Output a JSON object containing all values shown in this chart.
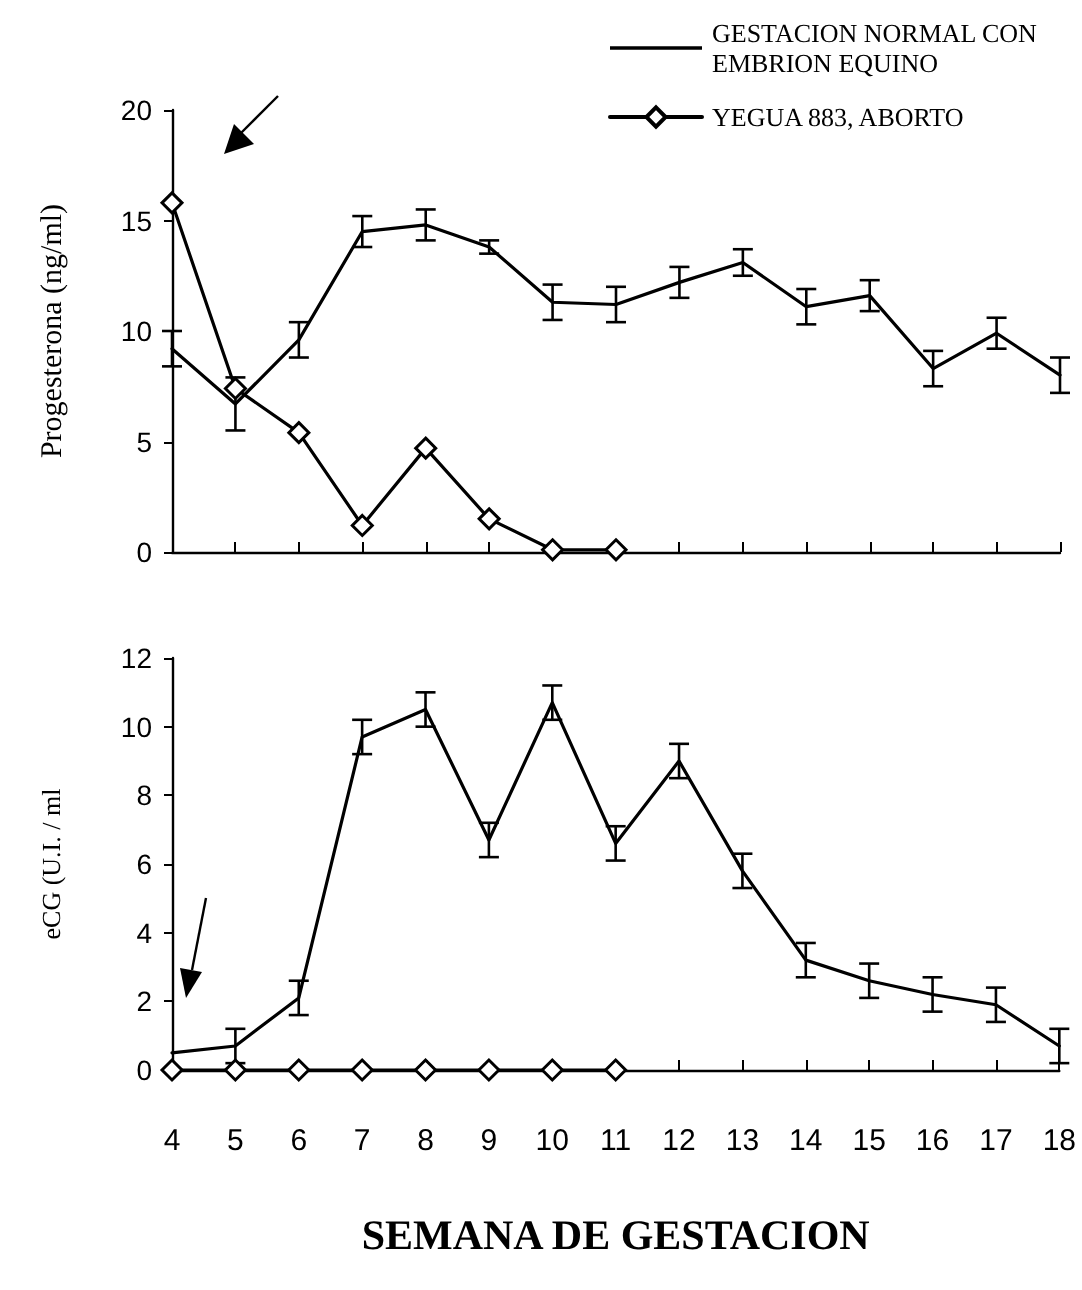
{
  "chart_data": [
    {
      "type": "line",
      "ylabel": "Progesterona (ng/ml)",
      "xlim": [
        4,
        18
      ],
      "xticks": [
        4,
        5,
        6,
        7,
        8,
        9,
        10,
        11,
        12,
        13,
        14,
        15,
        16,
        17,
        18
      ],
      "ylim": [
        0,
        20
      ],
      "yticks": [
        0,
        5,
        10,
        15,
        20
      ],
      "tick_labels": "y",
      "grid": false,
      "legend": "top right",
      "line_style": "solid",
      "series": [
        {
          "name": "GESTACION NORMAL CON EMBRION EQUINO",
          "color": "#000000",
          "marker": "none",
          "x": [
            4,
            5,
            6,
            7,
            8,
            9,
            10,
            11,
            12,
            13,
            14,
            15,
            16,
            17,
            18
          ],
          "values": [
            9.2,
            6.7,
            9.6,
            14.5,
            14.8,
            13.8,
            11.3,
            11.2,
            12.2,
            13.1,
            11.1,
            11.6,
            8.3,
            9.9,
            8.0
          ],
          "errors": [
            0.8,
            1.2,
            0.8,
            0.7,
            0.7,
            0.3,
            0.8,
            0.8,
            0.7,
            0.6,
            0.8,
            0.7,
            0.8,
            0.7,
            0.8
          ]
        },
        {
          "name": "YEGUA 883, ABORTO",
          "color": "#000000",
          "marker": "diamond",
          "x": [
            4,
            5,
            6,
            7,
            8,
            9,
            10,
            11
          ],
          "values": [
            15.8,
            7.4,
            5.4,
            1.2,
            4.7,
            1.5,
            0.1,
            0.1
          ]
        }
      ]
    },
    {
      "type": "line",
      "ylabel": "eCG (U.I. / ml",
      "xlabel": "SEMANA DE GESTACION",
      "xlim": [
        4,
        18
      ],
      "xticks": [
        4,
        5,
        6,
        7,
        8,
        9,
        10,
        11,
        12,
        13,
        14,
        15,
        16,
        17,
        18
      ],
      "ylim": [
        0,
        12
      ],
      "yticks": [
        0,
        2,
        4,
        6,
        8,
        10,
        12
      ],
      "grid": false,
      "line_style": "solid",
      "series": [
        {
          "color": "#000000",
          "marker": "none",
          "x": [
            4,
            5,
            6,
            7,
            8,
            9,
            10,
            11,
            12,
            13,
            14,
            15,
            16,
            17,
            18
          ],
          "values": [
            0.5,
            0.7,
            2.1,
            9.7,
            10.5,
            6.7,
            10.7,
            6.6,
            9.0,
            5.8,
            3.2,
            2.6,
            2.2,
            1.9,
            0.7
          ],
          "errors": [
            null,
            0.5,
            0.5,
            0.5,
            0.5,
            0.5,
            0.5,
            0.5,
            0.5,
            0.5,
            0.5,
            0.5,
            0.5,
            0.5,
            0.5
          ]
        },
        {
          "color": "#000000",
          "marker": "diamond",
          "x": [
            4,
            5,
            6,
            7,
            8,
            9,
            10,
            11
          ],
          "values": [
            0,
            0,
            0,
            0,
            0,
            0,
            0,
            0
          ]
        }
      ]
    }
  ]
}
